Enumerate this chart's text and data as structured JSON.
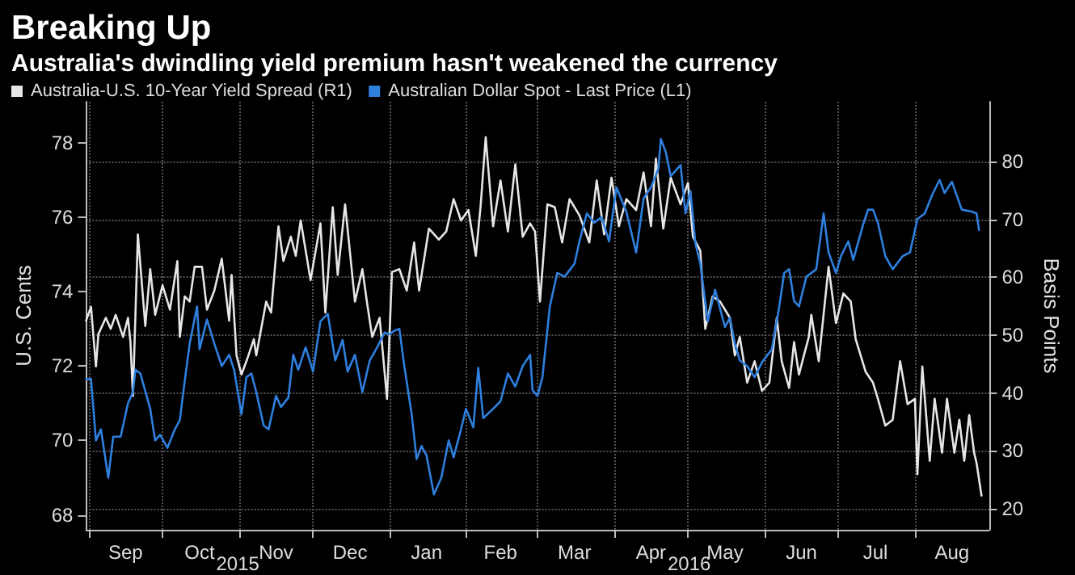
{
  "chart_data": {
    "type": "line",
    "title": "Breaking Up",
    "subtitle": "Australia's dwindling yield premium hasn't weakened the currency",
    "ylabel": "U.S. Cents",
    "y2label": "Basis Points",
    "legend": "top left",
    "grid": true,
    "marker": "none",
    "line_style": "solid",
    "xlim": [
      "2015-08-31",
      "2016-08-31"
    ],
    "xticks": [
      {
        "value": "2015-09-01",
        "label": null
      },
      {
        "value": "2015-09-16",
        "label": "Sep"
      },
      {
        "value": "2015-10-01",
        "label": null
      },
      {
        "value": "2015-10-16",
        "label": "Oct"
      },
      {
        "value": "2015-11-01",
        "label": null
      },
      {
        "value": "2015-11-16",
        "label": "Nov"
      },
      {
        "value": "2015-12-01",
        "label": null
      },
      {
        "value": "2015-12-16",
        "label": "Dec"
      },
      {
        "value": "2016-01-01",
        "label": null
      },
      {
        "value": "2016-01-16",
        "label": "Jan"
      },
      {
        "value": "2016-02-01",
        "label": null
      },
      {
        "value": "2016-02-15",
        "label": "Feb"
      },
      {
        "value": "2016-03-01",
        "label": null
      },
      {
        "value": "2016-03-16",
        "label": "Mar"
      },
      {
        "value": "2016-04-01",
        "label": null
      },
      {
        "value": "2016-04-16",
        "label": "Apr"
      },
      {
        "value": "2016-05-01",
        "label": null
      },
      {
        "value": "2016-05-16",
        "label": "May"
      },
      {
        "value": "2016-06-01",
        "label": null
      },
      {
        "value": "2016-06-16",
        "label": "Jun"
      },
      {
        "value": "2016-07-01",
        "label": null
      },
      {
        "value": "2016-07-16",
        "label": "Jul"
      },
      {
        "value": "2016-08-01",
        "label": null
      },
      {
        "value": "2016-08-16",
        "label": "Aug"
      }
    ],
    "ylim": [
      67.6,
      79.1
    ],
    "yticks": [
      68,
      70,
      72,
      74,
      76,
      78
    ],
    "y2lim": [
      16.4,
      90.3
    ],
    "y2ticks": [
      20,
      30,
      40,
      50,
      60,
      70,
      80
    ],
    "annotations": [
      "2015",
      "2016"
    ],
    "series": [
      {
        "name": "Australia-U.S. 10-Year Yield Spread (R1)",
        "color": "#e6e6e6",
        "axis": "y2",
        "x": [
          "2015-08-31",
          "2015-09-02",
          "2015-09-04",
          "2015-09-05",
          "2015-09-08",
          "2015-09-10",
          "2015-09-12",
          "2015-09-15",
          "2015-09-17",
          "2015-09-18",
          "2015-09-19",
          "2015-09-21",
          "2015-09-24",
          "2015-09-26",
          "2015-09-28",
          "2015-10-01",
          "2015-10-04",
          "2015-10-07",
          "2015-10-08",
          "2015-10-10",
          "2015-10-12",
          "2015-10-14",
          "2015-10-17",
          "2015-10-19",
          "2015-10-22",
          "2015-10-25",
          "2015-10-28",
          "2015-10-29",
          "2015-10-31",
          "2015-11-02",
          "2015-11-04",
          "2015-11-07",
          "2015-11-08",
          "2015-11-12",
          "2015-11-14",
          "2015-11-17",
          "2015-11-19",
          "2015-11-22",
          "2015-11-24",
          "2015-11-26",
          "2015-11-30",
          "2015-12-04",
          "2015-12-06",
          "2015-12-09",
          "2015-12-11",
          "2015-12-14",
          "2015-12-18",
          "2015-12-21",
          "2015-12-23",
          "2015-12-25",
          "2015-12-28",
          "2015-12-31",
          "2016-01-02",
          "2016-01-05",
          "2016-01-08",
          "2016-01-11",
          "2016-01-13",
          "2016-01-17",
          "2016-01-21",
          "2016-01-24",
          "2016-01-27",
          "2016-01-30",
          "2016-02-02",
          "2016-02-05",
          "2016-02-07",
          "2016-02-09",
          "2016-02-12",
          "2016-02-15",
          "2016-02-18",
          "2016-02-21",
          "2016-02-24",
          "2016-02-27",
          "2016-02-29",
          "2016-03-02",
          "2016-03-05",
          "2016-03-08",
          "2016-03-11",
          "2016-03-14",
          "2016-03-18",
          "2016-03-22",
          "2016-03-25",
          "2016-03-28",
          "2016-03-31",
          "2016-04-03",
          "2016-04-06",
          "2016-04-10",
          "2016-04-13",
          "2016-04-16",
          "2016-04-18",
          "2016-04-21",
          "2016-04-24",
          "2016-04-28",
          "2016-05-01",
          "2016-05-03",
          "2016-05-06",
          "2016-05-08",
          "2016-05-11",
          "2016-05-14",
          "2016-05-18",
          "2016-05-20",
          "2016-05-22",
          "2016-05-25",
          "2016-05-28",
          "2016-05-31",
          "2016-06-03",
          "2016-06-06",
          "2016-06-08",
          "2016-06-11",
          "2016-06-13",
          "2016-06-15",
          "2016-06-17",
          "2016-06-19",
          "2016-06-20",
          "2016-06-23",
          "2016-06-27",
          "2016-06-30",
          "2016-07-03",
          "2016-07-06",
          "2016-07-08",
          "2016-07-12",
          "2016-07-15",
          "2016-07-17",
          "2016-07-20",
          "2016-07-23",
          "2016-07-26",
          "2016-07-29",
          "2016-08-01",
          "2016-08-02",
          "2016-08-04",
          "2016-08-07",
          "2016-08-09",
          "2016-08-12",
          "2016-08-14",
          "2016-08-17",
          "2016-08-19",
          "2016-08-21",
          "2016-08-23",
          "2016-08-25",
          "2016-08-26",
          "2016-08-28"
        ],
        "values": [
          52.5,
          54.9,
          44.6,
          50.2,
          53.0,
          51.1,
          53.5,
          49.7,
          53.0,
          48.8,
          39.5,
          67.4,
          51.6,
          61.4,
          53.5,
          58.6,
          54.4,
          62.8,
          49.7,
          56.7,
          55.8,
          61.8,
          61.8,
          54.4,
          57.7,
          63.2,
          52.5,
          60.4,
          46.5,
          43.2,
          45.5,
          49.3,
          46.5,
          55.8,
          53.9,
          68.8,
          62.8,
          67.0,
          63.7,
          69.8,
          59.5,
          69.3,
          53.9,
          72.1,
          60.4,
          72.6,
          55.8,
          61.4,
          55.3,
          49.7,
          53.0,
          39.0,
          60.9,
          61.4,
          57.7,
          66.0,
          57.7,
          68.4,
          66.5,
          67.9,
          73.5,
          69.8,
          71.6,
          63.7,
          72.6,
          84.2,
          68.8,
          76.7,
          67.9,
          79.5,
          67.0,
          69.3,
          67.9,
          55.8,
          72.6,
          72.1,
          66.0,
          73.5,
          70.7,
          66.0,
          76.7,
          67.4,
          77.2,
          68.8,
          73.5,
          71.6,
          78.1,
          68.8,
          80.5,
          68.4,
          77.2,
          72.6,
          76.3,
          67.0,
          64.6,
          51.1,
          56.7,
          55.8,
          53.0,
          46.5,
          49.7,
          41.8,
          45.5,
          40.4,
          41.8,
          53.0,
          45.5,
          40.9,
          48.8,
          43.2,
          46.5,
          49.7,
          53.5,
          45.5,
          61.8,
          52.1,
          57.2,
          55.8,
          49.3,
          43.7,
          41.8,
          39.0,
          34.4,
          35.4,
          45.5,
          38.1,
          39.0,
          26.0,
          44.6,
          28.3,
          39.0,
          29.7,
          39.0,
          29.7,
          35.4,
          28.3,
          36.2,
          29.7,
          27.9,
          22.3
        ]
      },
      {
        "name": "Australian Dollar Spot - Last Price (L1)",
        "color": "#2e7fde",
        "axis": "y",
        "x": [
          "2015-08-31",
          "2015-09-02",
          "2015-09-04",
          "2015-09-06",
          "2015-09-09",
          "2015-09-11",
          "2015-09-14",
          "2015-09-17",
          "2015-09-19",
          "2015-09-20",
          "2015-09-22",
          "2015-09-26",
          "2015-09-28",
          "2015-09-30",
          "2015-10-03",
          "2015-10-06",
          "2015-10-08",
          "2015-10-10",
          "2015-10-12",
          "2015-10-15",
          "2015-10-16",
          "2015-10-19",
          "2015-10-22",
          "2015-10-25",
          "2015-10-28",
          "2015-10-30",
          "2015-11-02",
          "2015-11-04",
          "2015-11-06",
          "2015-11-08",
          "2015-11-11",
          "2015-11-13",
          "2015-11-16",
          "2015-11-18",
          "2015-11-21",
          "2015-11-23",
          "2015-11-25",
          "2015-11-28",
          "2015-12-01",
          "2015-12-04",
          "2015-12-07",
          "2015-12-10",
          "2015-12-13",
          "2015-12-15",
          "2015-12-18",
          "2015-12-21",
          "2015-12-24",
          "2015-12-27",
          "2015-12-30",
          "2016-01-01",
          "2016-01-03",
          "2016-01-05",
          "2016-01-07",
          "2016-01-10",
          "2016-01-12",
          "2016-01-14",
          "2016-01-16",
          "2016-01-19",
          "2016-01-22",
          "2016-01-25",
          "2016-01-27",
          "2016-01-30",
          "2016-02-01",
          "2016-02-04",
          "2016-02-06",
          "2016-02-08",
          "2016-02-12",
          "2016-02-15",
          "2016-02-18",
          "2016-02-21",
          "2016-02-24",
          "2016-02-27",
          "2016-02-28",
          "2016-03-01",
          "2016-03-03",
          "2016-03-06",
          "2016-03-09",
          "2016-03-12",
          "2016-03-16",
          "2016-03-18",
          "2016-03-21",
          "2016-03-24",
          "2016-03-27",
          "2016-03-30",
          "2016-04-02",
          "2016-04-06",
          "2016-04-10",
          "2016-04-13",
          "2016-04-16",
          "2016-04-19",
          "2016-04-20",
          "2016-04-22",
          "2016-04-24",
          "2016-04-28",
          "2016-04-30",
          "2016-05-02",
          "2016-05-04",
          "2016-05-06",
          "2016-05-09",
          "2016-05-12",
          "2016-05-16",
          "2016-05-18",
          "2016-05-20",
          "2016-05-22",
          "2016-05-25",
          "2016-05-28",
          "2016-05-31",
          "2016-06-04",
          "2016-06-07",
          "2016-06-09",
          "2016-06-11",
          "2016-06-13",
          "2016-06-15",
          "2016-06-18",
          "2016-06-22",
          "2016-06-25",
          "2016-06-27",
          "2016-06-30",
          "2016-07-02",
          "2016-07-05",
          "2016-07-07",
          "2016-07-11",
          "2016-07-13",
          "2016-07-15",
          "2016-07-17",
          "2016-07-20",
          "2016-07-23",
          "2016-07-27",
          "2016-07-30",
          "2016-08-02",
          "2016-08-05",
          "2016-08-08",
          "2016-08-11",
          "2016-08-13",
          "2016-08-16",
          "2016-08-20",
          "2016-08-24",
          "2016-08-26",
          "2016-08-27"
        ],
        "values": [
          71.65,
          71.65,
          70.0,
          70.3,
          69.0,
          70.1,
          70.1,
          71.0,
          71.3,
          71.9,
          71.8,
          70.85,
          70.0,
          70.15,
          69.8,
          70.3,
          70.55,
          71.6,
          72.6,
          73.6,
          72.45,
          73.25,
          72.6,
          72.0,
          72.3,
          71.9,
          70.7,
          71.7,
          71.8,
          71.3,
          70.4,
          70.3,
          71.2,
          70.9,
          71.15,
          72.3,
          71.9,
          72.5,
          71.85,
          73.2,
          73.4,
          72.15,
          72.7,
          71.85,
          72.3,
          71.3,
          72.15,
          72.5,
          72.9,
          72.85,
          72.95,
          73.0,
          72.0,
          70.7,
          69.5,
          69.85,
          69.6,
          68.55,
          69.0,
          70.0,
          69.55,
          70.3,
          70.85,
          70.35,
          71.95,
          70.6,
          70.85,
          71.05,
          71.8,
          71.45,
          72.0,
          72.3,
          71.35,
          71.2,
          71.7,
          73.6,
          74.5,
          74.4,
          74.75,
          75.35,
          76.1,
          75.85,
          76.0,
          75.35,
          76.8,
          76.15,
          75.05,
          76.5,
          76.8,
          77.3,
          78.1,
          77.75,
          77.1,
          77.4,
          76.1,
          76.7,
          75.3,
          74.75,
          73.2,
          74.05,
          73.05,
          73.3,
          72.6,
          72.15,
          72.0,
          71.7,
          72.1,
          72.45,
          73.6,
          74.5,
          74.6,
          73.75,
          73.6,
          74.4,
          74.6,
          76.1,
          75.05,
          74.5,
          74.95,
          75.35,
          74.85,
          75.8,
          76.2,
          76.2,
          75.85,
          74.95,
          74.6,
          74.95,
          75.05,
          75.95,
          76.1,
          76.6,
          77.0,
          76.65,
          76.95,
          76.2,
          76.15,
          76.1,
          75.65
        ]
      }
    ]
  }
}
